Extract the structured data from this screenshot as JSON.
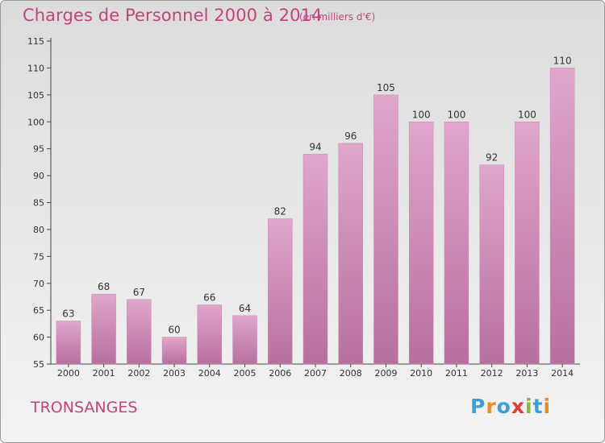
{
  "chart_data": {
    "type": "bar",
    "title": "Charges de Personnel 2000 à 2014",
    "subtitle": "(en milliers d'€)",
    "xlabel": "",
    "ylabel": "",
    "categories": [
      "2000",
      "2001",
      "2002",
      "2003",
      "2004",
      "2005",
      "2006",
      "2007",
      "2008",
      "2009",
      "2010",
      "2011",
      "2012",
      "2013",
      "2014"
    ],
    "values": [
      63,
      68,
      67,
      60,
      66,
      64,
      82,
      94,
      96,
      105,
      100,
      100,
      92,
      100,
      110
    ],
    "ylim": [
      55,
      115
    ],
    "yticks": [
      55,
      60,
      65,
      70,
      75,
      80,
      85,
      90,
      95,
      100,
      105,
      110,
      115
    ],
    "grid": false,
    "bar_color_top": "#e0a6cb",
    "bar_color_bottom": "#b7709c"
  },
  "commune": "TRONSANGES",
  "logo": {
    "text": "Proxiti",
    "letters": [
      "P",
      "r",
      "o",
      "x",
      "i",
      "t",
      "i"
    ],
    "colors": [
      "#3aa0d8",
      "#e8892a",
      "#3aa0d8",
      "#e23a3a",
      "#86b83a",
      "#3aa0d8",
      "#e8892a"
    ]
  }
}
